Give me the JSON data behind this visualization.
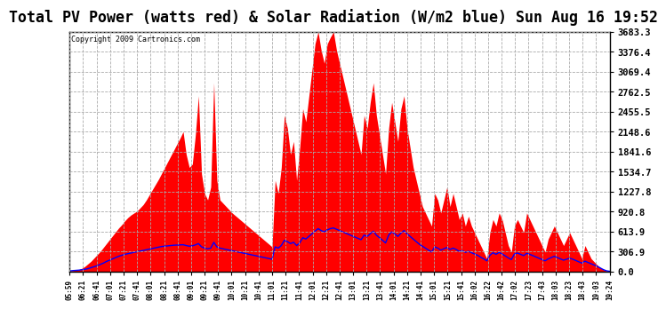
{
  "title": "Total PV Power (watts red) & Solar Radiation (W/m2 blue) Sun Aug 16 19:52",
  "copyright": "Copyright 2009 Cartronics.com",
  "yticks": [
    0.0,
    306.9,
    613.9,
    920.8,
    1227.8,
    1534.7,
    1841.6,
    2148.6,
    2455.5,
    2762.5,
    3069.4,
    3376.4,
    3683.3
  ],
  "ymax": 3683.3,
  "ymin": 0.0,
  "plot_bg_color": "#ffffff",
  "fig_bg_color": "#ffffff",
  "red_color": "#ff0000",
  "blue_color": "#0000ff",
  "grid_color": "#aaaaaa",
  "title_fontsize": 12,
  "xtick_labels": [
    "05:59",
    "06:21",
    "06:41",
    "07:01",
    "07:21",
    "07:41",
    "08:01",
    "08:21",
    "08:41",
    "09:01",
    "09:21",
    "09:41",
    "10:01",
    "10:21",
    "10:41",
    "11:01",
    "11:21",
    "11:41",
    "12:01",
    "12:21",
    "12:41",
    "13:01",
    "13:21",
    "13:41",
    "14:01",
    "14:21",
    "14:41",
    "15:01",
    "15:21",
    "15:41",
    "16:02",
    "16:22",
    "16:42",
    "17:02",
    "17:23",
    "17:43",
    "18:03",
    "18:23",
    "18:43",
    "19:03",
    "19:24"
  ],
  "pv_data": [
    10,
    15,
    20,
    30,
    50,
    80,
    120,
    160,
    210,
    260,
    310,
    370,
    430,
    490,
    550,
    610,
    670,
    720,
    780,
    830,
    870,
    900,
    930,
    980,
    1030,
    1100,
    1180,
    1260,
    1340,
    1420,
    1510,
    1600,
    1690,
    1780,
    1870,
    1960,
    2050,
    2150,
    1800,
    1600,
    1650,
    2100,
    2700,
    1500,
    1200,
    1100,
    1300,
    2900,
    1400,
    1100,
    1050,
    1000,
    950,
    900,
    860,
    820,
    780,
    740,
    700,
    660,
    620,
    580,
    540,
    500,
    460,
    420,
    380,
    1400,
    1200,
    1600,
    2400,
    2200,
    1800,
    2000,
    1400,
    1900,
    2500,
    2300,
    2700,
    3100,
    3500,
    3683,
    3400,
    3200,
    3500,
    3600,
    3683,
    3400,
    3200,
    3000,
    2800,
    2600,
    2400,
    2200,
    2000,
    1800,
    2400,
    2200,
    2600,
    2900,
    2400,
    2100,
    1800,
    1500,
    2200,
    2600,
    2300,
    2000,
    2500,
    2700,
    2200,
    1900,
    1600,
    1400,
    1200,
    1000,
    900,
    800,
    700,
    1200,
    1100,
    900,
    1100,
    1300,
    1000,
    1200,
    1000,
    800,
    900,
    700,
    850,
    700,
    600,
    500,
    400,
    300,
    200,
    600,
    800,
    700,
    900,
    800,
    600,
    400,
    300,
    700,
    800,
    700,
    600,
    900,
    800,
    700,
    600,
    500,
    400,
    300,
    500,
    600,
    700,
    600,
    500,
    400,
    500,
    600,
    500,
    400,
    300,
    200,
    400,
    300,
    200,
    150,
    100,
    60,
    30,
    10,
    5
  ],
  "solar_data": [
    10,
    15,
    18,
    22,
    28,
    35,
    45,
    60,
    75,
    90,
    110,
    130,
    155,
    175,
    195,
    215,
    235,
    250,
    265,
    275,
    285,
    295,
    305,
    315,
    325,
    335,
    345,
    355,
    365,
    375,
    385,
    390,
    395,
    400,
    405,
    408,
    410,
    412,
    400,
    390,
    395,
    410,
    430,
    380,
    360,
    350,
    360,
    450,
    380,
    360,
    350,
    340,
    330,
    320,
    310,
    300,
    290,
    280,
    270,
    260,
    250,
    240,
    230,
    220,
    210,
    200,
    190,
    380,
    360,
    400,
    480,
    460,
    430,
    450,
    400,
    440,
    520,
    500,
    540,
    580,
    620,
    660,
    630,
    610,
    640,
    660,
    670,
    650,
    630,
    610,
    590,
    570,
    550,
    530,
    510,
    490,
    560,
    540,
    580,
    620,
    560,
    520,
    480,
    440,
    560,
    610,
    580,
    540,
    590,
    630,
    580,
    540,
    500,
    460,
    420,
    390,
    360,
    330,
    300,
    380,
    360,
    330,
    350,
    370,
    340,
    360,
    340,
    310,
    320,
    295,
    310,
    290,
    270,
    250,
    220,
    195,
    165,
    250,
    290,
    265,
    295,
    270,
    240,
    210,
    185,
    270,
    285,
    265,
    245,
    280,
    265,
    245,
    225,
    205,
    185,
    165,
    195,
    215,
    235,
    215,
    195,
    175,
    190,
    205,
    190,
    170,
    150,
    130,
    160,
    140,
    120,
    100,
    80,
    55,
    30,
    12,
    5
  ]
}
